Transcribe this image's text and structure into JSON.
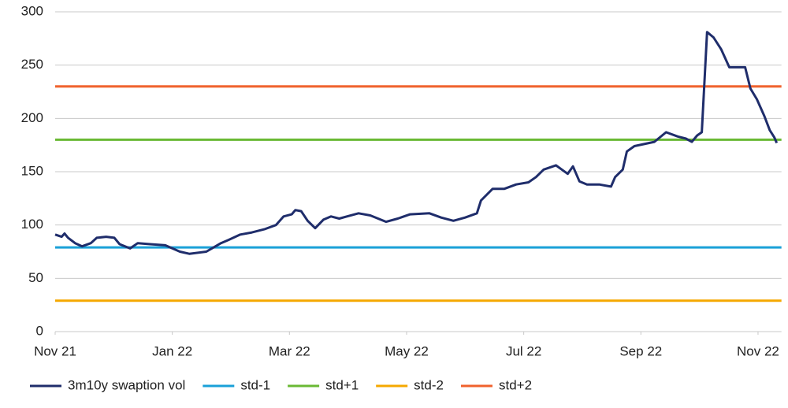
{
  "chart_data": {
    "type": "line",
    "x": [
      0,
      0.11,
      0.16,
      0.22,
      0.34,
      0.46,
      0.61,
      0.71,
      0.87,
      1.01,
      1.1,
      1.28,
      1.41,
      1.62,
      1.88,
      2.13,
      2.29,
      2.58,
      2.83,
      2.96,
      3.16,
      3.36,
      3.57,
      3.77,
      3.9,
      4.04,
      4.1,
      4.2,
      4.31,
      4.44,
      4.58,
      4.71,
      4.85,
      4.98,
      5.18,
      5.38,
      5.65,
      5.85,
      6.06,
      6.39,
      6.59,
      6.8,
      7.0,
      7.2,
      7.27,
      7.47,
      7.67,
      7.87,
      8.08,
      8.21,
      8.34,
      8.55,
      8.65,
      8.75,
      8.84,
      8.95,
      9.08,
      9.29,
      9.49,
      9.56,
      9.69,
      9.76,
      9.89,
      10.23,
      10.43,
      10.63,
      10.77,
      10.87,
      10.96,
      11.04,
      11.13,
      11.24,
      11.37,
      11.51,
      11.78,
      11.87,
      11.98,
      12.11,
      12.2,
      12.28,
      12.32
    ],
    "series": [
      {
        "name": "3m10y swaption vol",
        "color": "#1f2d6b",
        "values": [
          91,
          89,
          92,
          88,
          83,
          80,
          83,
          88,
          89,
          88,
          82,
          78,
          83,
          82,
          81,
          75,
          73,
          75,
          83,
          86,
          91,
          93,
          96,
          100,
          108,
          110,
          114,
          113,
          104,
          97,
          105,
          108,
          106,
          108,
          111,
          109,
          103,
          106,
          110,
          111,
          107,
          104,
          107,
          111,
          123,
          134,
          134,
          138,
          140,
          145,
          152,
          156,
          152,
          148,
          155,
          141,
          138,
          138,
          136,
          145,
          152,
          169,
          174,
          178,
          187,
          183,
          181,
          178,
          184,
          187,
          281,
          276,
          265,
          248,
          248,
          228,
          218,
          202,
          189,
          182,
          177
        ]
      }
    ],
    "reference_lines": [
      {
        "name": "std-1",
        "color": "#1aa0d8",
        "value": 79
      },
      {
        "name": "std+1",
        "color": "#6ab934",
        "value": 180
      },
      {
        "name": "std-2",
        "color": "#f5a800",
        "value": 29
      },
      {
        "name": "std+2",
        "color": "#f0622d",
        "value": 230
      }
    ],
    "xlim": [
      0,
      12.4
    ],
    "xticks": [
      {
        "value": 0,
        "label": "Nov 21"
      },
      {
        "value": 2,
        "label": "Jan 22"
      },
      {
        "value": 4,
        "label": "Mar 22"
      },
      {
        "value": 6,
        "label": "May 22"
      },
      {
        "value": 8,
        "label": "Jul 22"
      },
      {
        "value": 10,
        "label": "Sep 22"
      },
      {
        "value": 12,
        "label": "Nov 22"
      }
    ],
    "ylim": [
      0,
      300
    ],
    "yticks": [
      0,
      50,
      100,
      150,
      200,
      250,
      300
    ],
    "grid": true
  }
}
